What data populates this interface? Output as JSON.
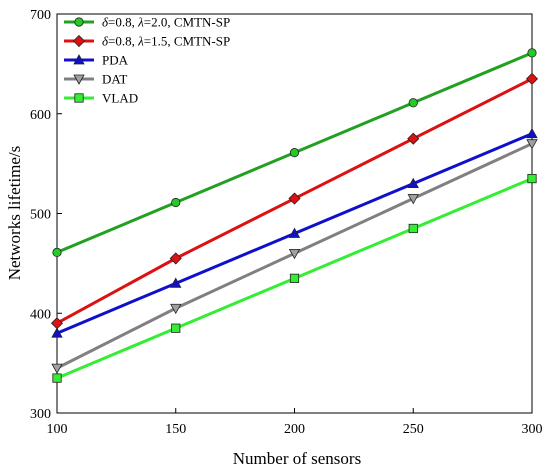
{
  "chart_data": {
    "type": "line",
    "title": "",
    "xlabel": "Number of sensors",
    "ylabel": "Networks lifetime/s",
    "x": [
      100,
      150,
      200,
      250,
      300
    ],
    "xlim": [
      100,
      300
    ],
    "ylim": [
      300,
      700
    ],
    "xticks": [
      100,
      150,
      200,
      250,
      300
    ],
    "yticks": [
      300,
      400,
      500,
      600,
      700
    ],
    "grid": false,
    "legend_position": "top-left",
    "series": [
      {
        "name": "δ=0.8, λ=2.0, CMTN-SP",
        "name_parts": [
          "δ",
          "=0.8, ",
          "λ",
          "=2.0, CMTN-SP"
        ],
        "color": "#22a022",
        "marker_fill": "#22cc22",
        "marker": "circle",
        "values": [
          461,
          511,
          561,
          611,
          661
        ]
      },
      {
        "name": "δ=0.8, λ=1.5, CMTN-SP",
        "name_parts": [
          "δ",
          "=0.8, ",
          "λ",
          "=1.5, CMTN-SP"
        ],
        "color": "#dd1111",
        "marker_fill": "#dd1111",
        "marker": "diamond",
        "values": [
          390,
          455,
          515,
          575,
          635
        ]
      },
      {
        "name": "PDA",
        "color": "#1010cc",
        "marker_fill": "#1010cc",
        "marker": "triangle-up",
        "values": [
          380,
          430,
          480,
          530,
          580
        ]
      },
      {
        "name": "DAT",
        "color": "#808080",
        "marker_fill": "#a0a0a0",
        "marker": "triangle-down",
        "values": [
          345,
          405,
          460,
          515,
          570
        ]
      },
      {
        "name": "VLAD",
        "color": "#33ee33",
        "marker_fill": "#33ee33",
        "marker": "square",
        "values": [
          335,
          385,
          435,
          485,
          535
        ]
      }
    ]
  }
}
